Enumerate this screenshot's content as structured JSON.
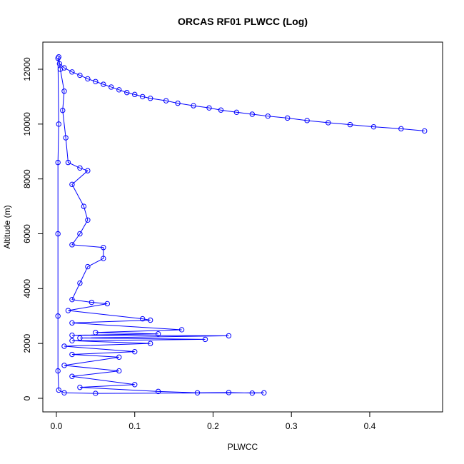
{
  "chart_data": {
    "type": "line",
    "title": "ORCAS RF01 PLWCC (Log)",
    "x_label": "PLWCC",
    "y_label": "Altitude (m)",
    "color": "#0000ff",
    "markers": true,
    "xlim": [
      -0.0173,
      0.493
    ],
    "ylim": [
      -495,
      12989
    ],
    "xticks": [
      {
        "value": 0,
        "label": "0.0"
      },
      0.1,
      0.2,
      0.3,
      0.4
    ],
    "yticks": [
      0,
      2000,
      4000,
      6000,
      8000,
      10000,
      12000
    ],
    "x": [
      0.47,
      0.44,
      0.405,
      0.375,
      0.347,
      0.32,
      0.295,
      0.27,
      0.25,
      0.23,
      0.21,
      0.195,
      0.175,
      0.155,
      0.14,
      0.12,
      0.11,
      0.1,
      0.09,
      0.08,
      0.07,
      0.06,
      0.05,
      0.04,
      0.03,
      0.02,
      0.01,
      0.004,
      0.003,
      0.005,
      0.01,
      0.008,
      0.012,
      0.015,
      0.03,
      0.04,
      0.02,
      0.035,
      0.04,
      0.03,
      0.02,
      0.06,
      0.06,
      0.04,
      0.03,
      0.02,
      0.045,
      0.065,
      0.015,
      0.11,
      0.12,
      0.02,
      0.16,
      0.05,
      0.13,
      0.02,
      0.22,
      0.03,
      0.19,
      0.02,
      0.12,
      0.01,
      0.1,
      0.02,
      0.08,
      0.01,
      0.08,
      0.02,
      0.1,
      0.03,
      0.13,
      0.18,
      0.22,
      0.25,
      0.265,
      0.05,
      0.01,
      0.003,
      0.002,
      0.002,
      0.002,
      0.002,
      0.003,
      0.002
    ],
    "values": [
      9750,
      9830,
      9900,
      9980,
      10050,
      10130,
      10220,
      10290,
      10360,
      10430,
      10510,
      10590,
      10670,
      10760,
      10850,
      10940,
      11000,
      11080,
      11150,
      11250,
      11350,
      11450,
      11550,
      11650,
      11780,
      11900,
      12050,
      12200,
      12450,
      12000,
      11200,
      10500,
      9500,
      8600,
      8400,
      8300,
      7800,
      7000,
      6500,
      6000,
      5600,
      5500,
      5100,
      4800,
      4200,
      3600,
      3500,
      3450,
      3200,
      2900,
      2850,
      2750,
      2500,
      2400,
      2350,
      2300,
      2280,
      2200,
      2150,
      2100,
      2000,
      1900,
      1700,
      1600,
      1500,
      1200,
      1000,
      800,
      500,
      400,
      250,
      200,
      210,
      190,
      200,
      180,
      200,
      300,
      1000,
      3000,
      6000,
      8600,
      10000,
      12400
    ]
  }
}
